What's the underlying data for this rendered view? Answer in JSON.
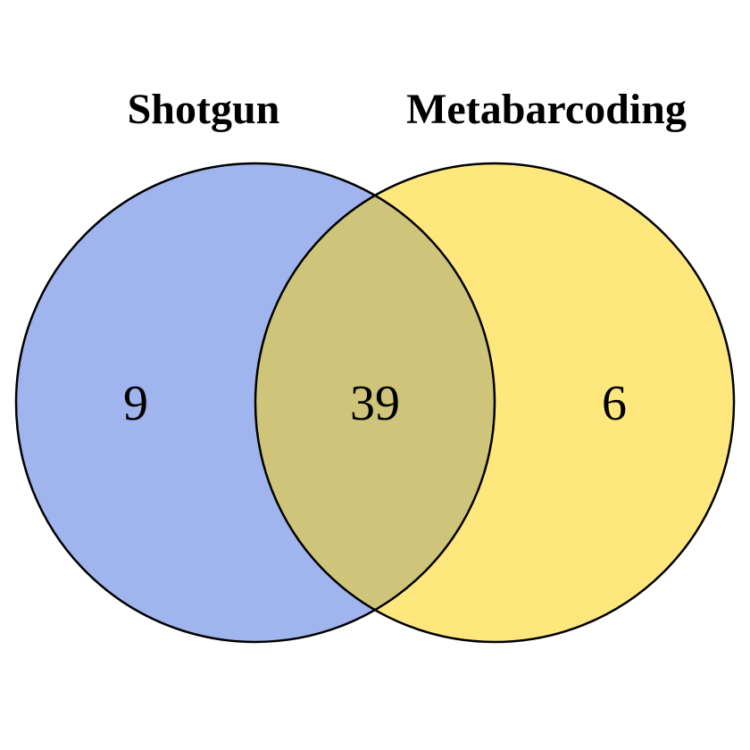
{
  "chart_data": {
    "type": "venn",
    "sets": [
      {
        "name": "Shotgun",
        "color": "#a0b4ee"
      },
      {
        "name": "Metabarcoding",
        "color": "#fee87e"
      }
    ],
    "intersection_color": "#cec57a",
    "regions": {
      "only_a": 9,
      "both": 39,
      "only_b": 6
    }
  }
}
